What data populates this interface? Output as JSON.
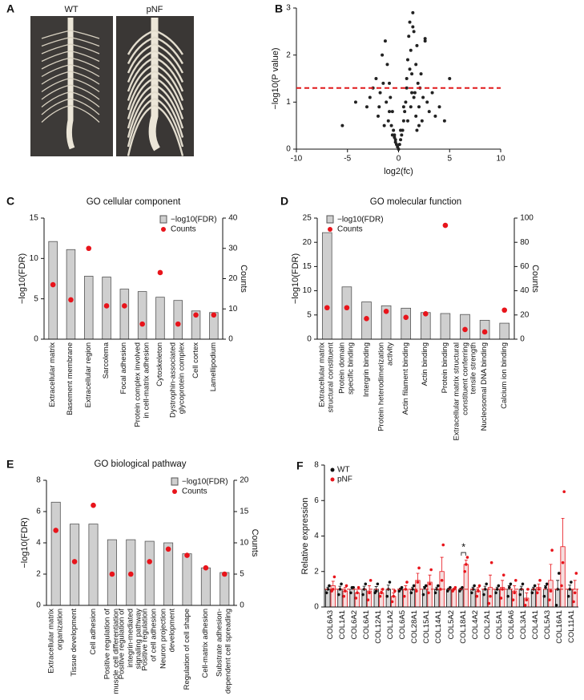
{
  "panel_A": {
    "panel_label": "A",
    "image_labels": [
      "WT",
      "pNF"
    ]
  },
  "chart_data": [
    {
      "type": "scatter",
      "panel_label": "B",
      "x_label": "log2(fc)",
      "y_label": "−log10(P value)",
      "xlim": [
        -10,
        10
      ],
      "xticks": [
        -10,
        -5,
        0,
        5,
        10
      ],
      "ylim": [
        0,
        3
      ],
      "yticks": [
        0,
        1,
        2,
        3
      ],
      "color": "#222222",
      "threshold": 1.3,
      "threshold_color": "#e0191b",
      "x": [
        -5.5,
        -4.2,
        -3.1,
        -2.8,
        -2.5,
        -2.2,
        -2.0,
        -1.8,
        -1.6,
        -1.5,
        -1.3,
        -1.2,
        -1.1,
        -1.0,
        -0.9,
        -0.8,
        -0.7,
        -0.6,
        -0.5,
        -0.4,
        -0.3,
        -0.2,
        -0.1,
        0,
        0.1,
        0.2,
        0.3,
        0.4,
        0.5,
        0.6,
        0.7,
        0.8,
        0.9,
        1.0,
        1.1,
        1.2,
        1.3,
        1.4,
        1.5,
        1.6,
        1.7,
        1.8,
        1.9,
        2.0,
        2.1,
        2.2,
        2.4,
        2.6,
        2.8,
        3.0,
        3.3,
        3.6,
        4.0,
        4.5,
        5.0,
        -1.4,
        -0.9,
        -0.6,
        -0.3,
        0.2,
        0.5,
        0.8,
        1.1,
        1.4,
        1.7,
        2.0,
        2.3,
        1.2,
        1.5,
        1.8,
        -1.9,
        -0.4,
        0.9,
        1.3,
        2.6
      ],
      "y": [
        0.5,
        1.0,
        0.9,
        1.1,
        1.3,
        1.5,
        0.7,
        1.2,
        2.0,
        1.4,
        2.3,
        1.0,
        1.8,
        0.6,
        1.4,
        1.1,
        0.5,
        0.8,
        0.4,
        0.3,
        0.2,
        0.1,
        0.05,
        0.0,
        0.1,
        0.2,
        0.3,
        0.4,
        0.6,
        0.8,
        1.0,
        1.5,
        1.9,
        2.4,
        2.7,
        2.1,
        1.6,
        2.9,
        2.5,
        1.2,
        1.8,
        2.2,
        1.4,
        0.9,
        1.3,
        1.6,
        1.1,
        2.3,
        1.0,
        0.8,
        1.2,
        0.7,
        0.9,
        0.6,
        1.5,
        0.5,
        0.8,
        0.3,
        0.15,
        0.4,
        0.9,
        1.3,
        1.7,
        2.6,
        0.7,
        0.5,
        0.6,
        0.9,
        1.1,
        0.4,
        0.9,
        0.25,
        0.6,
        1.2,
        2.35
      ]
    },
    {
      "type": "combo",
      "panel_label": "C",
      "title": "GO cellular component",
      "y_label": "−log10(FDR)",
      "y2_label": "Counts",
      "legend": "upper right",
      "categories": [
        "Extracellular matrix",
        "Basement membrane",
        "Extracellular region",
        "Sarcolema",
        "Focal adhesion",
        "Protein complex involved\nin cell-matrix adhesion",
        "Cytoskeleton",
        "Dystrophin-associated\nglycoprotein complex",
        "Cell cortex",
        "Lamellipodium"
      ],
      "ylim": [
        0,
        15
      ],
      "yticks": [
        0,
        5,
        10,
        15
      ],
      "y2lim": [
        0,
        40
      ],
      "y2ticks": [
        0,
        10,
        20,
        30,
        40
      ],
      "series": [
        {
          "name": "−log10(FDR)",
          "type": "bar",
          "color": "#cfcfcf",
          "values": [
            12.1,
            11.1,
            7.8,
            7.7,
            6.2,
            5.9,
            5.2,
            4.8,
            3.5,
            3.3
          ]
        },
        {
          "name": "Counts",
          "type": "scatter",
          "axis": "y2",
          "color": "#e8141b",
          "values": [
            18,
            13,
            30,
            11,
            11,
            5,
            22,
            5,
            8,
            8
          ]
        }
      ]
    },
    {
      "type": "combo",
      "panel_label": "D",
      "title": "GO molecular function",
      "y_label": "−log10(FDR)",
      "y2_label": "Counts",
      "legend": "upper left",
      "categories": [
        "Extracellular matrix\nstructural constituent",
        "Protein domain\nspecific binding",
        "Intergrin binding",
        "Protein heterodimerization\nactivity",
        "Actin filament binding",
        "Actin binding",
        "Protein binding",
        "Extracellular matrix structural\nconstituent conferring\ntensile strength",
        "Nucleosomal DNA binding",
        "Calcium ion binding"
      ],
      "ylim": [
        0,
        25
      ],
      "yticks": [
        0,
        5,
        10,
        15,
        20,
        25
      ],
      "y2lim": [
        0,
        100
      ],
      "y2ticks": [
        0,
        20,
        40,
        60,
        80,
        100
      ],
      "series": [
        {
          "name": "−log10(FDR)",
          "type": "bar",
          "color": "#cfcfcf",
          "values": [
            22,
            10.8,
            7.7,
            6.9,
            6.4,
            5.5,
            5.3,
            5.1,
            3.9,
            3.3
          ]
        },
        {
          "name": "Counts",
          "type": "scatter",
          "axis": "y2",
          "color": "#e8141b",
          "values": [
            26,
            26,
            17,
            23,
            18,
            21,
            94,
            8,
            6,
            24
          ]
        }
      ]
    },
    {
      "type": "combo",
      "panel_label": "E",
      "title": "GO biological pathway",
      "y_label": "−log10(FDR)",
      "y2_label": "Counts",
      "legend": "upper right",
      "categories": [
        "Extracellular matrix\norganization",
        "Tissue development",
        "Cell adhesion",
        "Positive regulation of\nmuscle cell differentiation",
        "Positive regulation of\nintegrin-mediated\nsignaling pathway",
        "Positive regulation\nof cell adhesion",
        "Neuron projection\ndevelopment",
        "Regulation of cell shape",
        "Cell-matrix adhesion",
        "Substrate adhesion-\ndependent cell spreading"
      ],
      "ylim": [
        0,
        8
      ],
      "yticks": [
        0,
        2,
        4,
        6,
        8
      ],
      "y2lim": [
        0,
        20
      ],
      "y2ticks": [
        0,
        5,
        10,
        15,
        20
      ],
      "series": [
        {
          "name": "−log10(FDR)",
          "type": "bar",
          "color": "#cfcfcf",
          "values": [
            6.6,
            5.2,
            5.2,
            4.2,
            4.2,
            4.1,
            4.0,
            3.3,
            2.4,
            2.1
          ]
        },
        {
          "name": "Counts",
          "type": "scatter",
          "axis": "y2",
          "color": "#e8141b",
          "values": [
            12,
            7,
            16,
            5,
            5,
            7,
            9,
            8,
            6,
            5
          ]
        }
      ]
    },
    {
      "type": "bar",
      "panel_label": "F",
      "y_label": "Relative expression",
      "legend": "upper left",
      "categories": [
        "COL6A3",
        "COL1A1",
        "COL6A2",
        "COL6A1",
        "COL12A1",
        "COL1A2",
        "COL6A5",
        "COL28A1",
        "COL15A1",
        "COL14A1",
        "COL5A2",
        "COL18A1",
        "COL4A2",
        "COL2A1",
        "COL5A1",
        "COL6A6",
        "COL3A1",
        "COL4A1",
        "COL5A3",
        "COL16A1",
        "COL11A1"
      ],
      "ylim": [
        0,
        8
      ],
      "yticks": [
        0,
        2,
        4,
        6,
        8
      ],
      "reference_line": 1,
      "reference_color": "#e0191b",
      "annotation": {
        "text": "*",
        "category": "COL18A1"
      },
      "series": [
        {
          "name": "WT",
          "color": "#111111",
          "fill": "#d6d6d6",
          "values": [
            1,
            1,
            1,
            1,
            1,
            1,
            1,
            1,
            1,
            1,
            1,
            1,
            1,
            1,
            1,
            1,
            1,
            1,
            1,
            1,
            1
          ],
          "errors": [
            0.12,
            0.17,
            0.1,
            0.17,
            0.15,
            0.23,
            0.06,
            0.12,
            0.15,
            0.12,
            0.06,
            0.06,
            0.12,
            0.17,
            0.12,
            0.2,
            0.17,
            0.12,
            0.2,
            0.5,
            0.23
          ],
          "points": [
            [
              0.8,
              1.0,
              1.2
            ],
            [
              0.7,
              1.0,
              1.3
            ],
            [
              0.8,
              1.1,
              1.1
            ],
            [
              0.7,
              1.0,
              1.3
            ],
            [
              0.8,
              0.9,
              1.3
            ],
            [
              0.6,
              1.0,
              1.4
            ],
            [
              0.9,
              1.0,
              1.1
            ],
            [
              0.8,
              1.0,
              1.2
            ],
            [
              0.7,
              1.1,
              1.2
            ],
            [
              0.8,
              1.0,
              1.2
            ],
            [
              0.9,
              1.0,
              1.1
            ],
            [
              0.9,
              1.0,
              1.1
            ],
            [
              0.8,
              1.0,
              1.2
            ],
            [
              0.7,
              1.0,
              1.3
            ],
            [
              0.8,
              1.0,
              1.2
            ],
            [
              0.6,
              1.1,
              1.3
            ],
            [
              0.7,
              1.0,
              1.3
            ],
            [
              0.8,
              1.0,
              1.2
            ],
            [
              0.6,
              1.1,
              1.3
            ],
            [
              0.1,
              1.0,
              1.9
            ],
            [
              0.6,
              1.0,
              1.4
            ]
          ]
        },
        {
          "name": "pNF",
          "color": "#e8141b",
          "fill": "#f5dede",
          "values": [
            1.2,
            0.9,
            0.8,
            0.9,
            0.8,
            0.6,
            1.0,
            1.5,
            1.4,
            2.0,
            1.0,
            2.4,
            0.9,
            1.1,
            1.1,
            0.9,
            0.5,
            1.1,
            1.5,
            3.4,
            1.0
          ],
          "errors": [
            0.25,
            0.2,
            0.2,
            0.3,
            0.1,
            0.2,
            0.2,
            0.4,
            0.4,
            0.8,
            0.05,
            0.25,
            0.2,
            0.7,
            0.4,
            0.3,
            0.3,
            0.2,
            0.9,
            1.6,
            0.5
          ],
          "points": [
            [
              0.9,
              1.0,
              1.7
            ],
            [
              0.6,
              0.9,
              1.2
            ],
            [
              0.5,
              0.8,
              1.1
            ],
            [
              0.4,
              0.8,
              1.5
            ],
            [
              0.6,
              0.8,
              1.0
            ],
            [
              0.3,
              0.6,
              0.9
            ],
            [
              0.6,
              1.0,
              1.4
            ],
            [
              0.9,
              1.4,
              2.2
            ],
            [
              0.8,
              1.3,
              2.1
            ],
            [
              1.0,
              1.5,
              3.5
            ],
            [
              0.9,
              1.0,
              1.1
            ],
            [
              2.0,
              2.4,
              2.8
            ],
            [
              0.6,
              0.9,
              1.2
            ],
            [
              0.2,
              0.6,
              2.5
            ],
            [
              0.5,
              1.0,
              1.8
            ],
            [
              0.4,
              0.8,
              1.5
            ],
            [
              0.1,
              0.4,
              1.0
            ],
            [
              0.8,
              1.0,
              1.5
            ],
            [
              0.4,
              0.9,
              3.2
            ],
            [
              1.2,
              2.5,
              6.5
            ],
            [
              0.3,
              0.8,
              1.9
            ]
          ]
        }
      ]
    }
  ]
}
